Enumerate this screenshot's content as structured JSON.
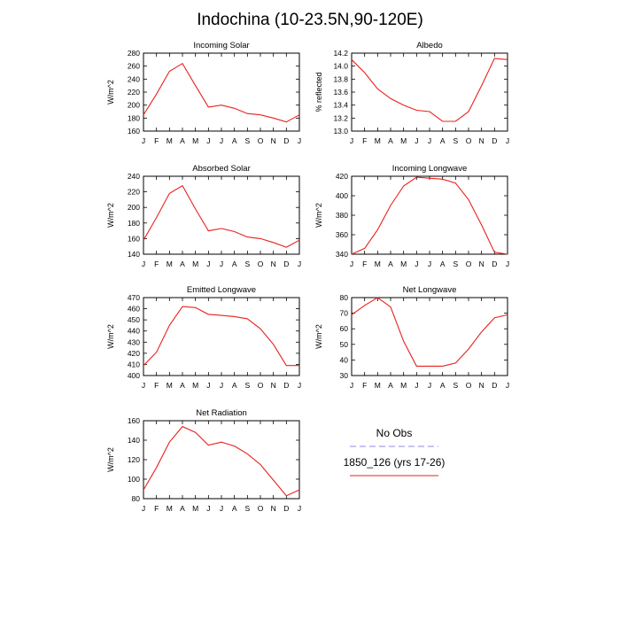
{
  "title": "Indochina (10-23.5N,90-120E)",
  "series_color": "#e8211d",
  "obs_color": "#8a8ae6",
  "chart_data": [
    {
      "type": "line",
      "title": "Incoming Solar",
      "ylabel": "W/m^2",
      "x": [
        "J",
        "F",
        "M",
        "A",
        "M",
        "J",
        "J",
        "A",
        "S",
        "O",
        "N",
        "D",
        "J"
      ],
      "ylim": [
        160,
        280
      ],
      "yticks": [
        "160",
        "180",
        "200",
        "220",
        "240",
        "260",
        "280"
      ],
      "series": [
        {
          "name": "1850_126 (yrs 17-26)",
          "values": [
            185,
            217,
            252,
            264,
            230,
            197,
            200,
            195,
            187,
            185,
            180,
            174,
            185
          ]
        }
      ]
    },
    {
      "type": "line",
      "title": "Albedo",
      "ylabel": "% reflected",
      "x": [
        "J",
        "F",
        "M",
        "A",
        "M",
        "J",
        "J",
        "A",
        "S",
        "O",
        "N",
        "D",
        "J"
      ],
      "ylim": [
        13.0,
        14.2
      ],
      "yticks": [
        "13.0",
        "13.2",
        "13.4",
        "13.6",
        "13.8",
        "14.0",
        "14.2"
      ],
      "series": [
        {
          "name": "1850_126 (yrs 17-26)",
          "values": [
            14.1,
            13.9,
            13.65,
            13.5,
            13.4,
            13.32,
            13.3,
            13.15,
            13.15,
            13.3,
            13.7,
            14.12,
            14.1
          ]
        }
      ]
    },
    {
      "type": "line",
      "title": "Absorbed Solar",
      "ylabel": "W/m^2",
      "x": [
        "J",
        "F",
        "M",
        "A",
        "M",
        "J",
        "J",
        "A",
        "S",
        "O",
        "N",
        "D",
        "J"
      ],
      "ylim": [
        140,
        240
      ],
      "yticks": [
        "140",
        "160",
        "180",
        "200",
        "220",
        "240"
      ],
      "series": [
        {
          "name": "1850_126 (yrs 17-26)",
          "values": [
            158,
            187,
            218,
            228,
            198,
            170,
            173,
            169,
            162,
            160,
            155,
            149,
            158
          ]
        }
      ]
    },
    {
      "type": "line",
      "title": "Incoming Longwave",
      "ylabel": "W/m^2",
      "x": [
        "J",
        "F",
        "M",
        "A",
        "M",
        "J",
        "J",
        "A",
        "S",
        "O",
        "N",
        "D",
        "J"
      ],
      "ylim": [
        340,
        420
      ],
      "yticks": [
        "340",
        "360",
        "380",
        "400",
        "420"
      ],
      "series": [
        {
          "name": "1850_126 (yrs 17-26)",
          "values": [
            340,
            346,
            365,
            390,
            410,
            419,
            418,
            417,
            413,
            396,
            370,
            342,
            340
          ]
        }
      ]
    },
    {
      "type": "line",
      "title": "Emitted Longwave",
      "ylabel": "W/m^2",
      "x": [
        "J",
        "F",
        "M",
        "A",
        "M",
        "J",
        "J",
        "A",
        "S",
        "O",
        "N",
        "D",
        "J"
      ],
      "ylim": [
        400,
        470
      ],
      "yticks": [
        "400",
        "410",
        "420",
        "430",
        "440",
        "450",
        "460",
        "470"
      ],
      "series": [
        {
          "name": "1850_126 (yrs 17-26)",
          "values": [
            409,
            421,
            445,
            462,
            461,
            455,
            454,
            453,
            451,
            442,
            428,
            409,
            409
          ]
        }
      ]
    },
    {
      "type": "line",
      "title": "Net Longwave",
      "ylabel": "W/m^2",
      "x": [
        "J",
        "F",
        "M",
        "A",
        "M",
        "J",
        "J",
        "A",
        "S",
        "O",
        "N",
        "D",
        "J"
      ],
      "ylim": [
        30,
        80
      ],
      "yticks": [
        "30",
        "40",
        "50",
        "60",
        "70",
        "80"
      ],
      "series": [
        {
          "name": "1850_126 (yrs 17-26)",
          "values": [
            69,
            75,
            80,
            74,
            52,
            36,
            36,
            36,
            38,
            47,
            58,
            67,
            69
          ]
        }
      ]
    },
    {
      "type": "line",
      "title": "Net Radiation",
      "ylabel": "W/m^2",
      "x": [
        "J",
        "F",
        "M",
        "A",
        "M",
        "J",
        "J",
        "A",
        "S",
        "O",
        "N",
        "D",
        "J"
      ],
      "ylim": [
        80,
        160
      ],
      "yticks": [
        "80",
        "100",
        "120",
        "140",
        "160"
      ],
      "series": [
        {
          "name": "1850_126 (yrs 17-26)",
          "values": [
            89,
            112,
            138,
            154,
            148,
            135,
            138,
            134,
            126,
            115,
            99,
            83,
            89
          ]
        }
      ]
    }
  ],
  "legend": {
    "obs_label": "No Obs",
    "model_label": "1850_126 (yrs 17-26)"
  }
}
